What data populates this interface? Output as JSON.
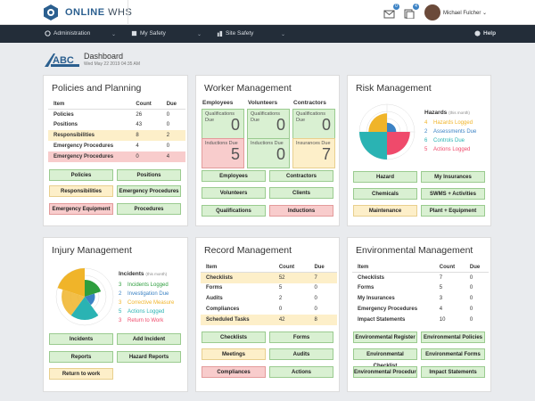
{
  "app": {
    "brand_a": "ONLINE",
    "brand_b": "WHS",
    "user_name": "Michael Fulcher",
    "badge_mail": "0",
    "badge_docs": "4"
  },
  "nav": {
    "administration": "Administration",
    "my_safety": "My Safety",
    "site_safety": "Site Safety",
    "help": "Help"
  },
  "header": {
    "company": "ABC",
    "title": "Dashboard",
    "date": "Wed May 22 2019 04:35 AM"
  },
  "policies": {
    "title": "Policies and Planning",
    "cols": [
      "Item",
      "Count",
      "Due"
    ],
    "rows": [
      [
        "Policies",
        "26",
        "0"
      ],
      [
        "Positions",
        "43",
        "0"
      ],
      [
        "Responsibilities",
        "8",
        "2"
      ],
      [
        "Emergency Procedures",
        "4",
        "0"
      ],
      [
        "Emergency Procedures",
        "0",
        "4"
      ]
    ],
    "buttons": [
      "Policies",
      "Positions",
      "Responsibilities",
      "Emergency Procedures",
      "Emergency Equipment",
      "Procedures"
    ]
  },
  "worker": {
    "title": "Worker Management",
    "heads": [
      "Employees",
      "Volunteers",
      "Contractors"
    ],
    "tiles": [
      [
        "Qualifications Due",
        "0"
      ],
      [
        "Qualifications Due",
        "0"
      ],
      [
        "Qualifications Due",
        "0"
      ],
      [
        "Inductions Due",
        "5"
      ],
      [
        "Inductions Due",
        "0"
      ],
      [
        "Insurances Due",
        "7"
      ]
    ],
    "buttons": [
      "Employees",
      "Contractors",
      "Volunteers",
      "Clients",
      "Qualifications",
      "Inductions"
    ]
  },
  "risk": {
    "title": "Risk Management",
    "legend_title": "Hazards",
    "period": "(this month)",
    "legend": [
      [
        "4",
        "Hazards Logged",
        "#f0b429"
      ],
      [
        "2",
        "Assessments Due",
        "#3b82c4"
      ],
      [
        "6",
        "Controls Due",
        "#2ab3b3"
      ],
      [
        "5",
        "Actions Logged",
        "#ef4a6b"
      ]
    ],
    "buttons": [
      "Hazard",
      "My Insurances",
      "Chemicals",
      "SWMS + Activities",
      "Maintenance",
      "Plant + Equipment"
    ]
  },
  "injury": {
    "title": "Injury Management",
    "legend_title": "Incidents",
    "period": "(this month)",
    "legend": [
      [
        "3",
        "Incidents Logged",
        "#2e9e3e"
      ],
      [
        "2",
        "Investigation Due",
        "#3b82c4"
      ],
      [
        "3",
        "Corrective Measure",
        "#f0b429"
      ],
      [
        "5",
        "Actions Logged",
        "#2ab3b3"
      ],
      [
        "3",
        "Return to Work",
        "#ef4a6b"
      ]
    ],
    "buttons": [
      "Incidents",
      "Add Incident",
      "Reports",
      "Hazard Reports",
      "Return to work"
    ]
  },
  "record": {
    "title": "Record Management",
    "cols": [
      "Item",
      "Count",
      "Due"
    ],
    "rows": [
      [
        "Checklists",
        "52",
        "7"
      ],
      [
        "Forms",
        "5",
        "0"
      ],
      [
        "Audits",
        "2",
        "0"
      ],
      [
        "Compliances",
        "0",
        "0"
      ],
      [
        "Scheduled Tasks",
        "42",
        "8"
      ]
    ],
    "buttons": [
      "Checklists",
      "Forms",
      "Meetings",
      "Audits",
      "Compliances",
      "Actions"
    ]
  },
  "env": {
    "title": "Environmental Management",
    "cols": [
      "Item",
      "Count",
      "Due"
    ],
    "rows": [
      [
        "Checklists",
        "7",
        "0"
      ],
      [
        "Forms",
        "5",
        "0"
      ],
      [
        "My Insurances",
        "3",
        "0"
      ],
      [
        "Emergency Procedures",
        "4",
        "0"
      ],
      [
        "Impact Statements",
        "10",
        "0"
      ]
    ],
    "buttons": [
      "Environmental Register",
      "Environmental Policies",
      "Environmental Checklist",
      "Environmental Forms",
      "Environmental Procedures",
      "Impact Statements"
    ]
  },
  "colors": {
    "nav": "#232d39",
    "green": "#d9f0d2",
    "yellow": "#fdefc9",
    "red": "#f8cccc"
  }
}
